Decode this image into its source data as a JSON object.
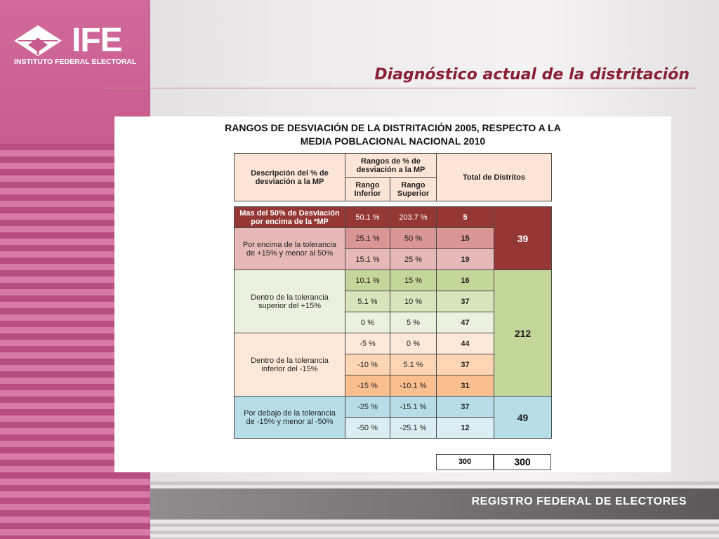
{
  "logo": {
    "name": "IFE",
    "subtitle": "INSTITUTO FEDERAL ELECTORAL"
  },
  "title": "Diagnóstico actual de la distritación",
  "table_title": {
    "line1": "RANGOS DE DESVIACIÓN DE LA DISTRITACIÓN 2005, RESPECTO A LA",
    "line2": "MEDIA POBLACIONAL NACIONAL 2010"
  },
  "headers": {
    "description": "Descripción del % de desviación a la MP",
    "ranges": "Rangos de % de desviación a la MP",
    "lower": "Rango Inferior",
    "upper": "Rango Superior",
    "total": "Total de Distritos"
  },
  "groups": [
    {
      "label": "Mas del 50% de Desviación por encima de la *MP"
    },
    {
      "label": "Por encima de la tolerancia de +15% y menor al 50%"
    },
    {
      "label": "Dentro de la tolerancia superior del +15%"
    },
    {
      "label": "Dentro de la tolerancia inferior del -15%"
    },
    {
      "label": "Por debajo de la tolerancia de -15% y menor al -50%"
    }
  ],
  "rows": [
    {
      "lower": "50.1 %",
      "upper": "203.7 %",
      "districts": "5"
    },
    {
      "lower": "25.1 %",
      "upper": "50 %",
      "districts": "15"
    },
    {
      "lower": "15.1 %",
      "upper": "25 %",
      "districts": "19"
    },
    {
      "lower": "10.1 %",
      "upper": "15 %",
      "districts": "16"
    },
    {
      "lower": "5.1 %",
      "upper": "10 %",
      "districts": "37"
    },
    {
      "lower": "0 %",
      "upper": "5 %",
      "districts": "47"
    },
    {
      "lower": "-5 %",
      "upper": "0 %",
      "districts": "44"
    },
    {
      "lower": "-10 %",
      "upper": "5.1 %",
      "districts": "37"
    },
    {
      "lower": "-15 %",
      "upper": "-10.1 %",
      "districts": "31"
    },
    {
      "lower": "-25 %",
      "upper": "-15.1 %",
      "districts": "37"
    },
    {
      "lower": "-50 %",
      "upper": "-25.1 %",
      "districts": "12"
    }
  ],
  "totals": {
    "above": "39",
    "within": "212",
    "below": "49"
  },
  "sum": {
    "districts": "300",
    "total": "300"
  },
  "footer": "REGISTRO FEDERAL DE ELECTORES",
  "colors": {
    "dark_red": "#953735",
    "rose": "#da9694",
    "light_rose": "#e6b9b8",
    "green": "#c4d79b",
    "light_green": "#d8e4bc",
    "pale_green": "#ebf1de",
    "peach": "#fde9d9",
    "light_orange": "#fcd5b4",
    "orange": "#fabf8f",
    "blue": "#b7dde8",
    "light_blue": "#daeef3",
    "title_red": "#8a2035"
  }
}
